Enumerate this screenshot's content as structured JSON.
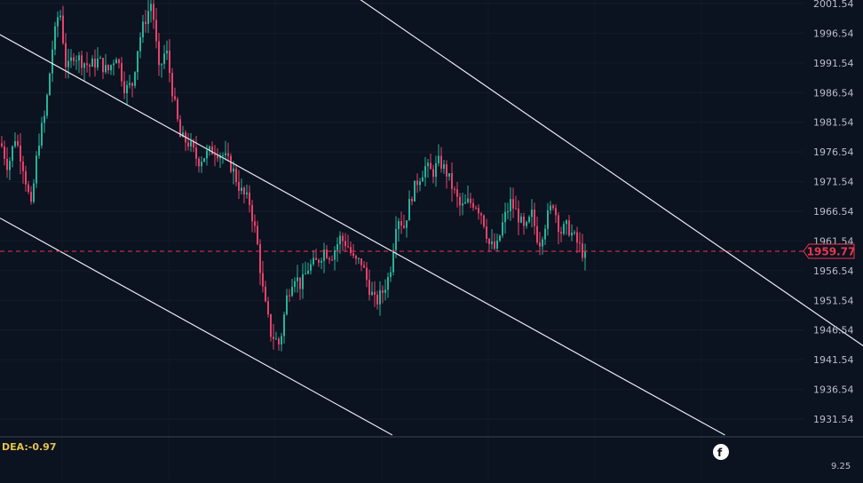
{
  "chart_data": {
    "type": "candlestick",
    "y_axis": {
      "ticks": [
        "2001.54",
        "1996.54",
        "1991.54",
        "1986.54",
        "1981.54",
        "1976.54",
        "1971.54",
        "1966.54",
        "1961.54",
        "1956.54",
        "1951.54",
        "1946.54",
        "1941.54",
        "1936.54",
        "1931.54"
      ],
      "range": [
        1929.5,
        2002.5
      ]
    },
    "current_price": "1959.77",
    "indicator": {
      "label": "DEA:-0.97",
      "value": "9.25"
    },
    "trend_channel": [
      {
        "name": "upper",
        "points": [
          [
            0,
            2044
          ],
          [
            972,
            1943.9
          ]
        ]
      },
      {
        "name": "middle",
        "points": [
          [
            0,
            1996.3
          ],
          [
            972,
            1916
          ]
        ]
      },
      {
        "name": "lower",
        "points": [
          [
            0,
            1965.4
          ],
          [
            972,
            1885
          ]
        ]
      }
    ],
    "price_path": [
      [
        0,
        1978
      ],
      [
        8,
        1974
      ],
      [
        16,
        1979
      ],
      [
        24,
        1975
      ],
      [
        34,
        1967
      ],
      [
        42,
        1978
      ],
      [
        50,
        1983
      ],
      [
        58,
        1994
      ],
      [
        66,
        2001
      ],
      [
        74,
        1990
      ],
      [
        82,
        1993
      ],
      [
        90,
        1992
      ],
      [
        100,
        1991
      ],
      [
        110,
        1992
      ],
      [
        120,
        1990
      ],
      [
        130,
        1993
      ],
      [
        140,
        1987
      ],
      [
        148,
        1988
      ],
      [
        155,
        1995
      ],
      [
        163,
        1999
      ],
      [
        170,
        2002
      ],
      [
        178,
        1990
      ],
      [
        186,
        1994
      ],
      [
        194,
        1986
      ],
      [
        202,
        1979
      ],
      [
        212,
        1978
      ],
      [
        222,
        1975
      ],
      [
        230,
        1976
      ],
      [
        240,
        1977
      ],
      [
        250,
        1976
      ],
      [
        260,
        1974
      ],
      [
        270,
        1970
      ],
      [
        280,
        1968
      ],
      [
        288,
        1962
      ],
      [
        296,
        1952
      ],
      [
        304,
        1946
      ],
      [
        314,
        1944
      ],
      [
        322,
        1952
      ],
      [
        330,
        1956
      ],
      [
        338,
        1954
      ],
      [
        346,
        1957
      ],
      [
        356,
        1958
      ],
      [
        364,
        1960
      ],
      [
        372,
        1959
      ],
      [
        382,
        1962
      ],
      [
        390,
        1961
      ],
      [
        398,
        1958
      ],
      [
        406,
        1958
      ],
      [
        414,
        1954
      ],
      [
        422,
        1951
      ],
      [
        430,
        1953
      ],
      [
        438,
        1956
      ],
      [
        446,
        1966
      ],
      [
        454,
        1964
      ],
      [
        462,
        1969
      ],
      [
        470,
        1972
      ],
      [
        478,
        1974
      ],
      [
        486,
        1973
      ],
      [
        494,
        1975
      ],
      [
        502,
        1973
      ],
      [
        510,
        1970
      ],
      [
        518,
        1967
      ],
      [
        526,
        1968
      ],
      [
        534,
        1968
      ],
      [
        542,
        1966
      ],
      [
        550,
        1961
      ],
      [
        558,
        1960
      ],
      [
        566,
        1965
      ],
      [
        574,
        1968
      ],
      [
        582,
        1966
      ],
      [
        590,
        1963
      ],
      [
        598,
        1966
      ],
      [
        606,
        1961
      ],
      [
        614,
        1965
      ],
      [
        622,
        1968
      ],
      [
        630,
        1963
      ],
      [
        638,
        1964
      ],
      [
        646,
        1962
      ],
      [
        654,
        1960
      ],
      [
        660,
        1958
      ]
    ]
  }
}
